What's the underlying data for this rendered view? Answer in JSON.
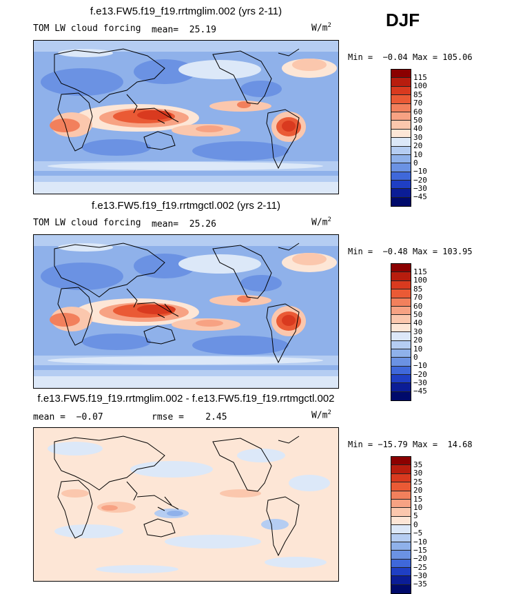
{
  "season": "DJF",
  "panels": [
    {
      "title": "f.e13.FW5.f19_f19.rrtmglim.002 (yrs 2-11)",
      "variable": "TOM LW cloud forcing",
      "stat1": "mean=  25.19",
      "stat2": "",
      "units": "W/m",
      "units_exp": "2",
      "min": "Min =  −0.04",
      "max": "Max = 105.06",
      "levels": [
        "115",
        "100",
        "85",
        "70",
        "60",
        "50",
        "40",
        "30",
        "20",
        "10",
        "0",
        "−10",
        "−20",
        "−30",
        "−45"
      ],
      "colors": [
        "#8b0000",
        "#b81d0e",
        "#d93a1f",
        "#ea5a35",
        "#f2805c",
        "#f7a283",
        "#fbc7ad",
        "#fde6d6",
        "#dce8f8",
        "#b5cdf2",
        "#8fb1ea",
        "#6b92e3",
        "#3f68da",
        "#1f3fc4",
        "#0b1d96",
        "#000a6b"
      ]
    },
    {
      "title": "f.e13.FW5.f19_f19.rrtmgctl.002 (yrs 2-11)",
      "variable": "TOM LW cloud forcing",
      "stat1": "mean=  25.26",
      "stat2": "",
      "units": "W/m",
      "units_exp": "2",
      "min": "Min =  −0.48",
      "max": "Max = 103.95",
      "levels": [
        "115",
        "100",
        "85",
        "70",
        "60",
        "50",
        "40",
        "30",
        "20",
        "10",
        "0",
        "−10",
        "−20",
        "−30",
        "−45"
      ],
      "colors": [
        "#8b0000",
        "#b81d0e",
        "#d93a1f",
        "#ea5a35",
        "#f2805c",
        "#f7a283",
        "#fbc7ad",
        "#fde6d6",
        "#dce8f8",
        "#b5cdf2",
        "#8fb1ea",
        "#6b92e3",
        "#3f68da",
        "#1f3fc4",
        "#0b1d96",
        "#000a6b"
      ]
    },
    {
      "title": "f.e13.FW5.f19_f19.rrtmglim.002 - f.e13.FW5.f19_f19.rrtmgctl.002",
      "variable": "",
      "stat1": "mean =  −0.07",
      "stat2": "rmse =    2.45",
      "units": "W/m",
      "units_exp": "2",
      "min": "Min = −15.79",
      "max": "Max =  14.68",
      "levels": [
        "35",
        "30",
        "25",
        "20",
        "15",
        "10",
        "5",
        "0",
        "−5",
        "−10",
        "−15",
        "−20",
        "−25",
        "−30",
        "−35"
      ],
      "colors": [
        "#8b0000",
        "#b81d0e",
        "#d93a1f",
        "#ea5a35",
        "#f2805c",
        "#f7a283",
        "#fbc7ad",
        "#fde6d6",
        "#dce8f8",
        "#b5cdf2",
        "#8fb1ea",
        "#6b92e3",
        "#3f68da",
        "#1f3fc4",
        "#0b1d96",
        "#000a6b"
      ]
    }
  ]
}
